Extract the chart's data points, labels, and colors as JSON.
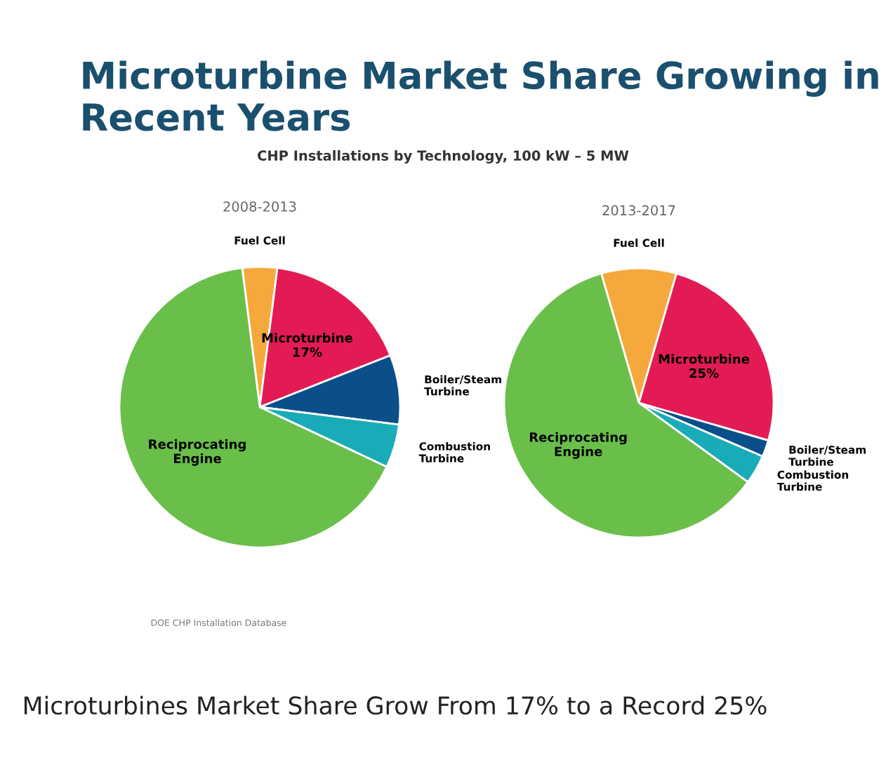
{
  "chart_data": [
    {
      "type": "pie",
      "title": "2008-2013",
      "categories": [
        "Fuel Cell",
        "Microturbine",
        "Boiler/Steam Turbine",
        "Combustion Turbine",
        "Reciprocating Engine"
      ],
      "values": [
        4,
        17,
        8,
        5,
        66
      ],
      "value_labels": [
        null,
        "17%",
        null,
        null,
        null
      ],
      "colors": [
        "#f5a93c",
        "#e31b54",
        "#0b4f8a",
        "#1aabb8",
        "#6abf4b"
      ],
      "annotations": [
        "Microturbine Market Share Growing in Recent Years",
        "CHP Installations by Technology, 100 kW – 5 MW",
        "DOE CHP Installation Database",
        "Microturbines Market Share Grow From 17% to a Record 25%"
      ]
    },
    {
      "type": "pie",
      "title": "2013-2017",
      "categories": [
        "Fuel Cell",
        "Microturbine",
        "Boiler/Steam Turbine",
        "Combustion Turbine",
        "Reciprocating Engine"
      ],
      "values": [
        9,
        25,
        2,
        3.5,
        60.5
      ],
      "value_labels": [
        null,
        "25%",
        null,
        null,
        null
      ],
      "colors": [
        "#f5a93c",
        "#e31b54",
        "#0b4f8a",
        "#1aabb8",
        "#6abf4b"
      ]
    }
  ]
}
